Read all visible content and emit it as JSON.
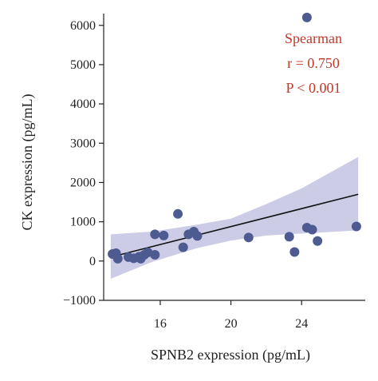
{
  "chart_data": {
    "type": "scatter",
    "xlabel": "SPNB2 expression (pg/mL)",
    "ylabel": "CK expression (pg/mL)",
    "xlim": [
      12.8,
      27.6
    ],
    "ylim": [
      -1000,
      6300
    ],
    "xticks": [
      16,
      20,
      24
    ],
    "xtick_labels": [
      "16",
      "20",
      "24"
    ],
    "yticks": [
      -1000,
      0,
      1000,
      2000,
      3000,
      4000,
      5000,
      6000
    ],
    "ytick_labels": [
      "−1000",
      "0",
      "1000",
      "2000",
      "3000",
      "4000",
      "5000",
      "6000"
    ],
    "grid": false,
    "points": [
      {
        "x": 13.3,
        "y": 180
      },
      {
        "x": 13.5,
        "y": 200
      },
      {
        "x": 13.6,
        "y": 60
      },
      {
        "x": 14.2,
        "y": 100
      },
      {
        "x": 14.5,
        "y": 70
      },
      {
        "x": 14.8,
        "y": 110
      },
      {
        "x": 14.9,
        "y": 60
      },
      {
        "x": 15.1,
        "y": 160
      },
      {
        "x": 15.3,
        "y": 220
      },
      {
        "x": 15.7,
        "y": 160
      },
      {
        "x": 15.7,
        "y": 680
      },
      {
        "x": 16.2,
        "y": 650
      },
      {
        "x": 17.0,
        "y": 1200
      },
      {
        "x": 17.3,
        "y": 350
      },
      {
        "x": 17.6,
        "y": 680
      },
      {
        "x": 17.9,
        "y": 750
      },
      {
        "x": 18.1,
        "y": 640
      },
      {
        "x": 21.0,
        "y": 600
      },
      {
        "x": 23.3,
        "y": 620
      },
      {
        "x": 23.6,
        "y": 230
      },
      {
        "x": 24.3,
        "y": 850
      },
      {
        "x": 24.6,
        "y": 800
      },
      {
        "x": 24.9,
        "y": 510
      },
      {
        "x": 27.1,
        "y": 880
      },
      {
        "x": 24.3,
        "y": 6200
      }
    ],
    "fit_line": [
      {
        "x": 13.2,
        "y": 100
      },
      {
        "x": 27.2,
        "y": 1700
      }
    ],
    "ci_band": {
      "x": [
        13.2,
        15.5,
        18.0,
        20.0,
        22.0,
        24.0,
        27.2
      ],
      "upper": [
        680,
        750,
        920,
        1080,
        1450,
        1850,
        2650
      ],
      "lower": [
        -450,
        -30,
        320,
        520,
        650,
        700,
        780
      ]
    },
    "colors": {
      "points": "#4d5b91",
      "fit_line": "#111111",
      "ci_band": "#c3c3e2",
      "annotation": "#c0392b",
      "axis": "#222222"
    }
  },
  "annotation": {
    "method": "Spearman",
    "r_text": "r = 0.750",
    "p_text": "P < 0.001"
  }
}
